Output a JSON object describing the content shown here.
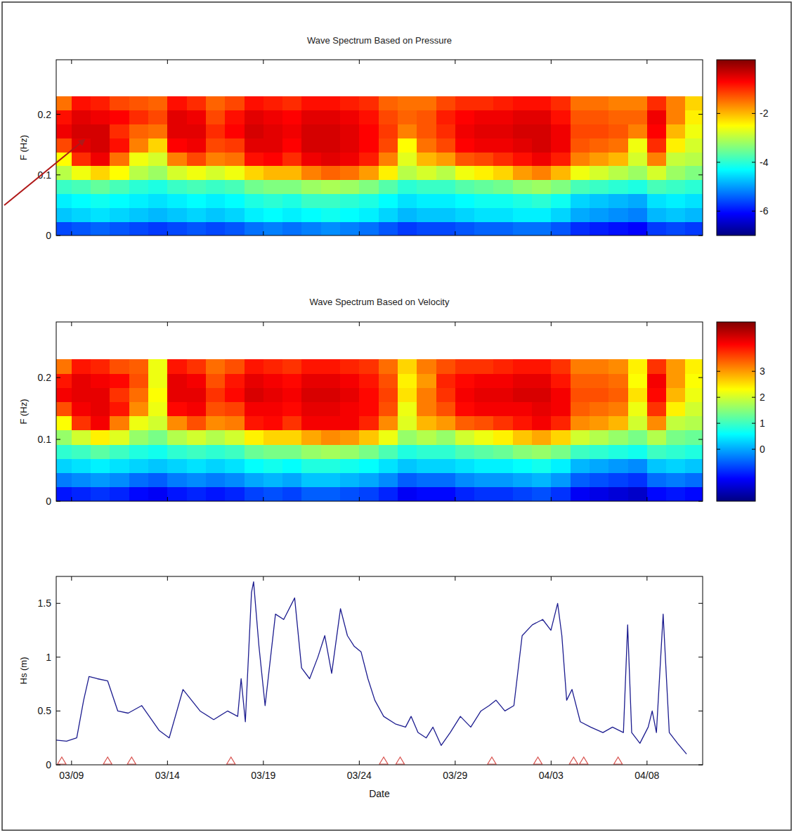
{
  "chart_data": [
    {
      "type": "heatmap",
      "title": "Wave Spectrum Based on Pressure",
      "ylabel": "F (Hz)",
      "x_edges": [
        67.2,
        68,
        69,
        70,
        71,
        72,
        73,
        74,
        75,
        76,
        77,
        78,
        79,
        80,
        81,
        82,
        83,
        84,
        85,
        86,
        87,
        88,
        89,
        90,
        91,
        92,
        93,
        94,
        95,
        96,
        97,
        98,
        99,
        100,
        100.9
      ],
      "y_edges": [
        0,
        0.023,
        0.046,
        0.069,
        0.092,
        0.115,
        0.138,
        0.161,
        0.184,
        0.207,
        0.23
      ],
      "z": [
        [
          -5.6,
          -5.5,
          -5.4,
          -5.5,
          -5.6,
          -5.7,
          -5.6,
          -5.5,
          -5.6,
          -5.5,
          -5.3,
          -5.2,
          -5.3,
          -5.2,
          -5.1,
          -5.2,
          -5.3,
          -5.5,
          -5.7,
          -5.6,
          -5.6,
          -5.5,
          -5.4,
          -5.4,
          -5.3,
          -5.3,
          -5.5,
          -5.8,
          -5.9,
          -6.0,
          -6.1,
          -5.7,
          -5.6,
          -5.7
        ],
        [
          -4.7,
          -4.6,
          -4.5,
          -4.6,
          -4.7,
          -4.8,
          -4.7,
          -4.6,
          -4.7,
          -4.6,
          -4.4,
          -4.3,
          -4.4,
          -4.3,
          -4.2,
          -4.3,
          -4.4,
          -4.6,
          -4.8,
          -4.7,
          -4.7,
          -4.6,
          -4.5,
          -4.5,
          -4.4,
          -4.4,
          -4.6,
          -4.9,
          -5.0,
          -5.1,
          -5.2,
          -4.8,
          -4.7,
          -4.8
        ],
        [
          -4.4,
          -4.3,
          -4.2,
          -4.3,
          -4.4,
          -4.5,
          -4.4,
          -4.3,
          -4.4,
          -4.3,
          -4.1,
          -4.0,
          -4.1,
          -3.9,
          -3.9,
          -4.0,
          -4.1,
          -4.3,
          -4.5,
          -4.4,
          -4.4,
          -4.3,
          -4.2,
          -4.2,
          -4.1,
          -4.0,
          -4.2,
          -4.6,
          -4.7,
          -4.8,
          -4.9,
          -4.5,
          -4.4,
          -4.5
        ],
        [
          -3.9,
          -3.8,
          -3.6,
          -3.8,
          -4.0,
          -4.1,
          -3.9,
          -3.8,
          -3.9,
          -3.8,
          -3.5,
          -3.4,
          -3.4,
          -3.2,
          -3.1,
          -3.2,
          -3.4,
          -3.7,
          -4.0,
          -3.9,
          -3.9,
          -3.7,
          -3.6,
          -3.5,
          -3.3,
          -3.2,
          -3.4,
          -3.8,
          -3.9,
          -4.0,
          -4.1,
          -3.8,
          -3.9,
          -4.0
        ],
        [
          -3.0,
          -2.6,
          -2.2,
          -2.5,
          -3.0,
          -3.2,
          -2.8,
          -2.6,
          -2.8,
          -2.6,
          -2.2,
          -2.0,
          -2.0,
          -1.6,
          -1.4,
          -1.5,
          -1.8,
          -2.4,
          -3.0,
          -2.8,
          -3.0,
          -2.6,
          -2.4,
          -2.2,
          -1.8,
          -1.6,
          -2.0,
          -2.6,
          -2.8,
          -3.0,
          -3.2,
          -2.8,
          -3.2,
          -3.4
        ],
        [
          -2.5,
          -1.0,
          -0.6,
          -1.5,
          -2.6,
          -2.8,
          -1.6,
          -1.2,
          -1.6,
          -1.5,
          -0.8,
          -0.7,
          -1.0,
          -0.6,
          -0.5,
          -0.6,
          -0.9,
          -1.6,
          -2.7,
          -2.0,
          -1.8,
          -1.3,
          -1.2,
          -1.0,
          -0.8,
          -0.6,
          -0.9,
          -1.6,
          -1.8,
          -2.0,
          -2.8,
          -1.6,
          -2.9,
          -3.0
        ],
        [
          -1.2,
          -0.5,
          -0.4,
          -0.8,
          -1.6,
          -2.2,
          -0.7,
          -0.6,
          -1.2,
          -1.1,
          -0.5,
          -0.5,
          -0.7,
          -0.4,
          -0.4,
          -0.5,
          -0.7,
          -1.2,
          -2.5,
          -1.5,
          -1.2,
          -0.7,
          -0.6,
          -0.6,
          -0.5,
          -0.4,
          -0.6,
          -1.3,
          -1.4,
          -1.5,
          -2.6,
          -1.0,
          -2.4,
          -2.8
        ],
        [
          -0.6,
          -0.4,
          -0.4,
          -1.0,
          -1.4,
          -1.5,
          -0.5,
          -0.5,
          -1.0,
          -0.7,
          -0.4,
          -0.5,
          -0.6,
          -0.4,
          -0.4,
          -0.5,
          -0.7,
          -1.1,
          -1.6,
          -1.3,
          -1.0,
          -0.6,
          -0.5,
          -0.5,
          -0.4,
          -0.4,
          -0.6,
          -1.2,
          -1.2,
          -1.3,
          -1.6,
          -0.7,
          -2.0,
          -2.6
        ],
        [
          -0.8,
          -0.5,
          -0.6,
          -0.7,
          -1.0,
          -1.2,
          -0.5,
          -0.6,
          -1.2,
          -0.8,
          -0.5,
          -0.6,
          -0.7,
          -0.5,
          -0.5,
          -0.6,
          -0.8,
          -1.2,
          -1.4,
          -1.3,
          -0.9,
          -0.7,
          -0.6,
          -0.6,
          -0.5,
          -0.5,
          -0.8,
          -1.3,
          -1.3,
          -1.4,
          -1.4,
          -0.6,
          -1.6,
          -2.4
        ],
        [
          -1.5,
          -0.8,
          -0.9,
          -1.2,
          -1.3,
          -1.4,
          -0.8,
          -1.0,
          -1.4,
          -1.2,
          -0.8,
          -0.9,
          -1.0,
          -0.8,
          -0.8,
          -0.9,
          -1.0,
          -1.4,
          -1.5,
          -1.5,
          -1.2,
          -1.0,
          -1.0,
          -0.9,
          -0.8,
          -0.8,
          -1.0,
          -1.5,
          -1.5,
          -1.6,
          -1.6,
          -1.0,
          -1.6,
          -2.2
        ]
      ],
      "xlim": [
        67.2,
        100.9
      ],
      "xticks": [
        68,
        73,
        78,
        83,
        88,
        93,
        98
      ],
      "ylim": [
        0,
        0.29
      ],
      "yticks": [
        0,
        0.1,
        0.2
      ],
      "colorbar_lim": [
        -7,
        0.2
      ],
      "colorbar_ticks": [
        -2,
        -4,
        -6
      ],
      "tick_labels": "y",
      "grid": false
    },
    {
      "type": "heatmap",
      "title": "Wave Spectrum Based on Velocity",
      "ylabel": "F (Hz)",
      "x_edges": [
        67.2,
        68,
        69,
        70,
        71,
        72,
        73,
        74,
        75,
        76,
        77,
        78,
        79,
        80,
        81,
        82,
        83,
        84,
        85,
        86,
        87,
        88,
        89,
        90,
        91,
        92,
        93,
        94,
        95,
        96,
        97,
        98,
        99,
        100,
        100.9
      ],
      "y_edges": [
        0,
        0.023,
        0.046,
        0.069,
        0.092,
        0.115,
        0.138,
        0.161,
        0.184,
        0.207,
        0.23
      ],
      "z": [
        [
          -1.0,
          -0.9,
          -0.8,
          -0.9,
          -1.1,
          -1.2,
          -1.0,
          -0.9,
          -1.0,
          -0.9,
          -0.7,
          -0.6,
          -0.7,
          -0.5,
          -0.5,
          -0.6,
          -0.7,
          -0.9,
          -1.2,
          -1.1,
          -1.1,
          -0.9,
          -0.8,
          -0.8,
          -0.7,
          -0.6,
          -0.8,
          -1.2,
          -1.3,
          -1.4,
          -1.5,
          -1.1,
          -1.0,
          -1.1
        ],
        [
          -0.3,
          -0.2,
          -0.1,
          -0.2,
          -0.4,
          -0.5,
          -0.3,
          -0.2,
          -0.3,
          -0.2,
          0.0,
          0.1,
          0.0,
          0.2,
          0.2,
          0.1,
          0.0,
          -0.2,
          -0.5,
          -0.4,
          -0.4,
          -0.2,
          -0.1,
          -0.1,
          0.0,
          0.1,
          -0.1,
          -0.5,
          -0.6,
          -0.7,
          -0.8,
          -0.4,
          -0.3,
          -0.4
        ],
        [
          0.3,
          0.4,
          0.5,
          0.4,
          0.3,
          0.2,
          0.3,
          0.4,
          0.3,
          0.4,
          0.6,
          0.7,
          0.6,
          0.8,
          0.8,
          0.7,
          0.6,
          0.4,
          0.2,
          0.3,
          0.3,
          0.4,
          0.5,
          0.5,
          0.6,
          0.7,
          0.5,
          0.1,
          0.0,
          -0.1,
          -0.2,
          0.2,
          0.3,
          0.2
        ],
        [
          0.9,
          1.0,
          1.2,
          1.0,
          0.8,
          0.7,
          0.9,
          1.0,
          0.9,
          1.0,
          1.3,
          1.4,
          1.4,
          1.6,
          1.7,
          1.6,
          1.4,
          1.1,
          0.8,
          0.9,
          0.9,
          1.1,
          1.2,
          1.3,
          1.5,
          1.6,
          1.4,
          1.0,
          0.9,
          0.8,
          0.7,
          1.0,
          0.9,
          0.8
        ],
        [
          1.6,
          2.0,
          2.4,
          2.1,
          1.6,
          1.4,
          1.8,
          2.0,
          1.8,
          2.0,
          2.4,
          2.6,
          2.6,
          2.9,
          3.1,
          3.0,
          2.7,
          2.2,
          1.6,
          1.8,
          1.6,
          2.0,
          2.2,
          2.4,
          2.7,
          2.9,
          2.6,
          2.0,
          1.8,
          1.6,
          1.4,
          1.8,
          1.4,
          1.3
        ],
        [
          2.3,
          3.7,
          4.1,
          3.2,
          2.2,
          2.0,
          3.1,
          3.5,
          3.1,
          3.2,
          3.9,
          4.0,
          3.7,
          4.1,
          4.1,
          4.1,
          3.8,
          3.1,
          2.1,
          2.8,
          3.0,
          3.4,
          3.5,
          3.7,
          3.9,
          4.1,
          3.8,
          3.1,
          3.0,
          2.8,
          2.0,
          3.1,
          1.9,
          1.8
        ],
        [
          3.5,
          4.1,
          4.2,
          3.9,
          3.1,
          2.2,
          4.0,
          4.1,
          3.5,
          3.6,
          4.1,
          4.1,
          4.0,
          4.2,
          4.2,
          4.1,
          4.0,
          3.5,
          2.2,
          3.2,
          3.5,
          4.0,
          4.1,
          4.1,
          4.1,
          4.2,
          4.1,
          3.4,
          3.3,
          3.2,
          2.2,
          3.7,
          2.4,
          2.0
        ],
        [
          4.1,
          4.2,
          4.2,
          3.7,
          3.3,
          2.3,
          4.2,
          4.2,
          3.7,
          4.0,
          4.3,
          4.2,
          4.1,
          4.3,
          4.3,
          4.2,
          4.0,
          3.6,
          2.5,
          3.2,
          3.7,
          4.1,
          4.2,
          4.2,
          4.3,
          4.3,
          4.1,
          3.5,
          3.5,
          3.4,
          2.5,
          4.0,
          2.8,
          2.2
        ],
        [
          3.9,
          4.2,
          4.1,
          4.0,
          3.5,
          2.2,
          4.2,
          4.1,
          3.5,
          3.9,
          4.2,
          4.1,
          4.0,
          4.2,
          4.2,
          4.1,
          3.9,
          3.5,
          2.4,
          3.0,
          3.8,
          4.0,
          4.1,
          4.1,
          4.2,
          4.2,
          3.9,
          3.4,
          3.4,
          3.3,
          2.3,
          4.1,
          3.0,
          2.3
        ],
        [
          3.25,
          3.9,
          3.8,
          3.5,
          3.4,
          2.2,
          3.9,
          3.7,
          3.3,
          3.5,
          3.9,
          3.8,
          3.7,
          3.9,
          3.9,
          3.8,
          3.7,
          3.3,
          2.6,
          3.2,
          3.5,
          3.7,
          3.7,
          3.8,
          3.9,
          3.9,
          3.7,
          3.2,
          3.2,
          3.1,
          2.4,
          3.7,
          3.0,
          2.4
        ]
      ],
      "xlim": [
        67.2,
        100.9
      ],
      "xticks": [
        68,
        73,
        78,
        83,
        88,
        93,
        98
      ],
      "ylim": [
        0,
        0.29
      ],
      "yticks": [
        0,
        0.1,
        0.2
      ],
      "colorbar_lim": [
        -2,
        4.9
      ],
      "colorbar_ticks": [
        3,
        2,
        1,
        0
      ],
      "tick_labels": "y",
      "grid": false
    },
    {
      "type": "line",
      "xlabel": "Date",
      "ylabel": "Hs (m)",
      "x": [
        67.2,
        67.74,
        68.27,
        68.63,
        68.91,
        69.34,
        69.88,
        70.41,
        70.95,
        71.66,
        72.56,
        73.09,
        73.81,
        74.7,
        75.41,
        76.13,
        76.66,
        76.84,
        77.06,
        77.38,
        77.49,
        77.77,
        78.09,
        78.63,
        79.06,
        79.63,
        79.99,
        80.41,
        80.84,
        81.2,
        81.56,
        82.02,
        82.38,
        82.74,
        83.09,
        83.45,
        83.81,
        84.27,
        84.88,
        85.41,
        85.7,
        86.06,
        86.49,
        86.84,
        87.27,
        87.74,
        88.27,
        88.81,
        89.34,
        89.77,
        90.13,
        90.59,
        91.06,
        91.49,
        92.02,
        92.56,
        92.99,
        93.34,
        93.56,
        93.81,
        94.09,
        94.52,
        95.06,
        95.7,
        96.2,
        96.77,
        96.99,
        97.2,
        97.63,
        98.06,
        98.27,
        98.49,
        98.84,
        99.16,
        99.59,
        100.06
      ],
      "series": [
        {
          "type": "line",
          "color": "#1c1c8f",
          "values": [
            0.23,
            0.22,
            0.25,
            0.6,
            0.82,
            0.8,
            0.78,
            0.5,
            0.48,
            0.55,
            0.32,
            0.25,
            0.7,
            0.5,
            0.42,
            0.5,
            0.45,
            0.8,
            0.4,
            1.6,
            1.7,
            1.1,
            0.55,
            1.4,
            1.35,
            1.55,
            0.9,
            0.8,
            1.0,
            1.2,
            0.85,
            1.45,
            1.2,
            1.1,
            1.05,
            0.8,
            0.6,
            0.45,
            0.38,
            0.35,
            0.45,
            0.3,
            0.25,
            0.35,
            0.18,
            0.3,
            0.45,
            0.35,
            0.5,
            0.55,
            0.6,
            0.5,
            0.55,
            1.2,
            1.3,
            1.35,
            1.25,
            1.5,
            1.2,
            0.6,
            0.7,
            0.4,
            0.35,
            0.3,
            0.35,
            0.3,
            1.3,
            0.3,
            0.2,
            0.35,
            0.5,
            0.3,
            1.4,
            0.3,
            0.2,
            0.1
          ]
        },
        {
          "type": "scatter",
          "marker": "triangle",
          "color": "#d9534f",
          "x": [
            67.49,
            69.88,
            71.13,
            76.31,
            84.27,
            85.13,
            89.91,
            92.31,
            94.17,
            94.7,
            96.49
          ],
          "values": [
            0,
            0,
            0,
            0,
            0,
            0,
            0,
            0,
            0,
            0,
            0
          ]
        }
      ],
      "xlim": [
        67.2,
        100.9
      ],
      "xticks": [
        {
          "value": 68,
          "label": "03/09"
        },
        {
          "value": 73,
          "label": "03/14"
        },
        {
          "value": 78,
          "label": "03/19"
        },
        {
          "value": 83,
          "label": "03/24"
        },
        {
          "value": 88,
          "label": "03/29"
        },
        {
          "value": 93,
          "label": "04/03"
        },
        {
          "value": 98,
          "label": "04/08"
        }
      ],
      "ylim": [
        0,
        1.75
      ],
      "yticks": [
        0,
        0.5,
        1,
        1.5
      ],
      "grid": false
    }
  ]
}
